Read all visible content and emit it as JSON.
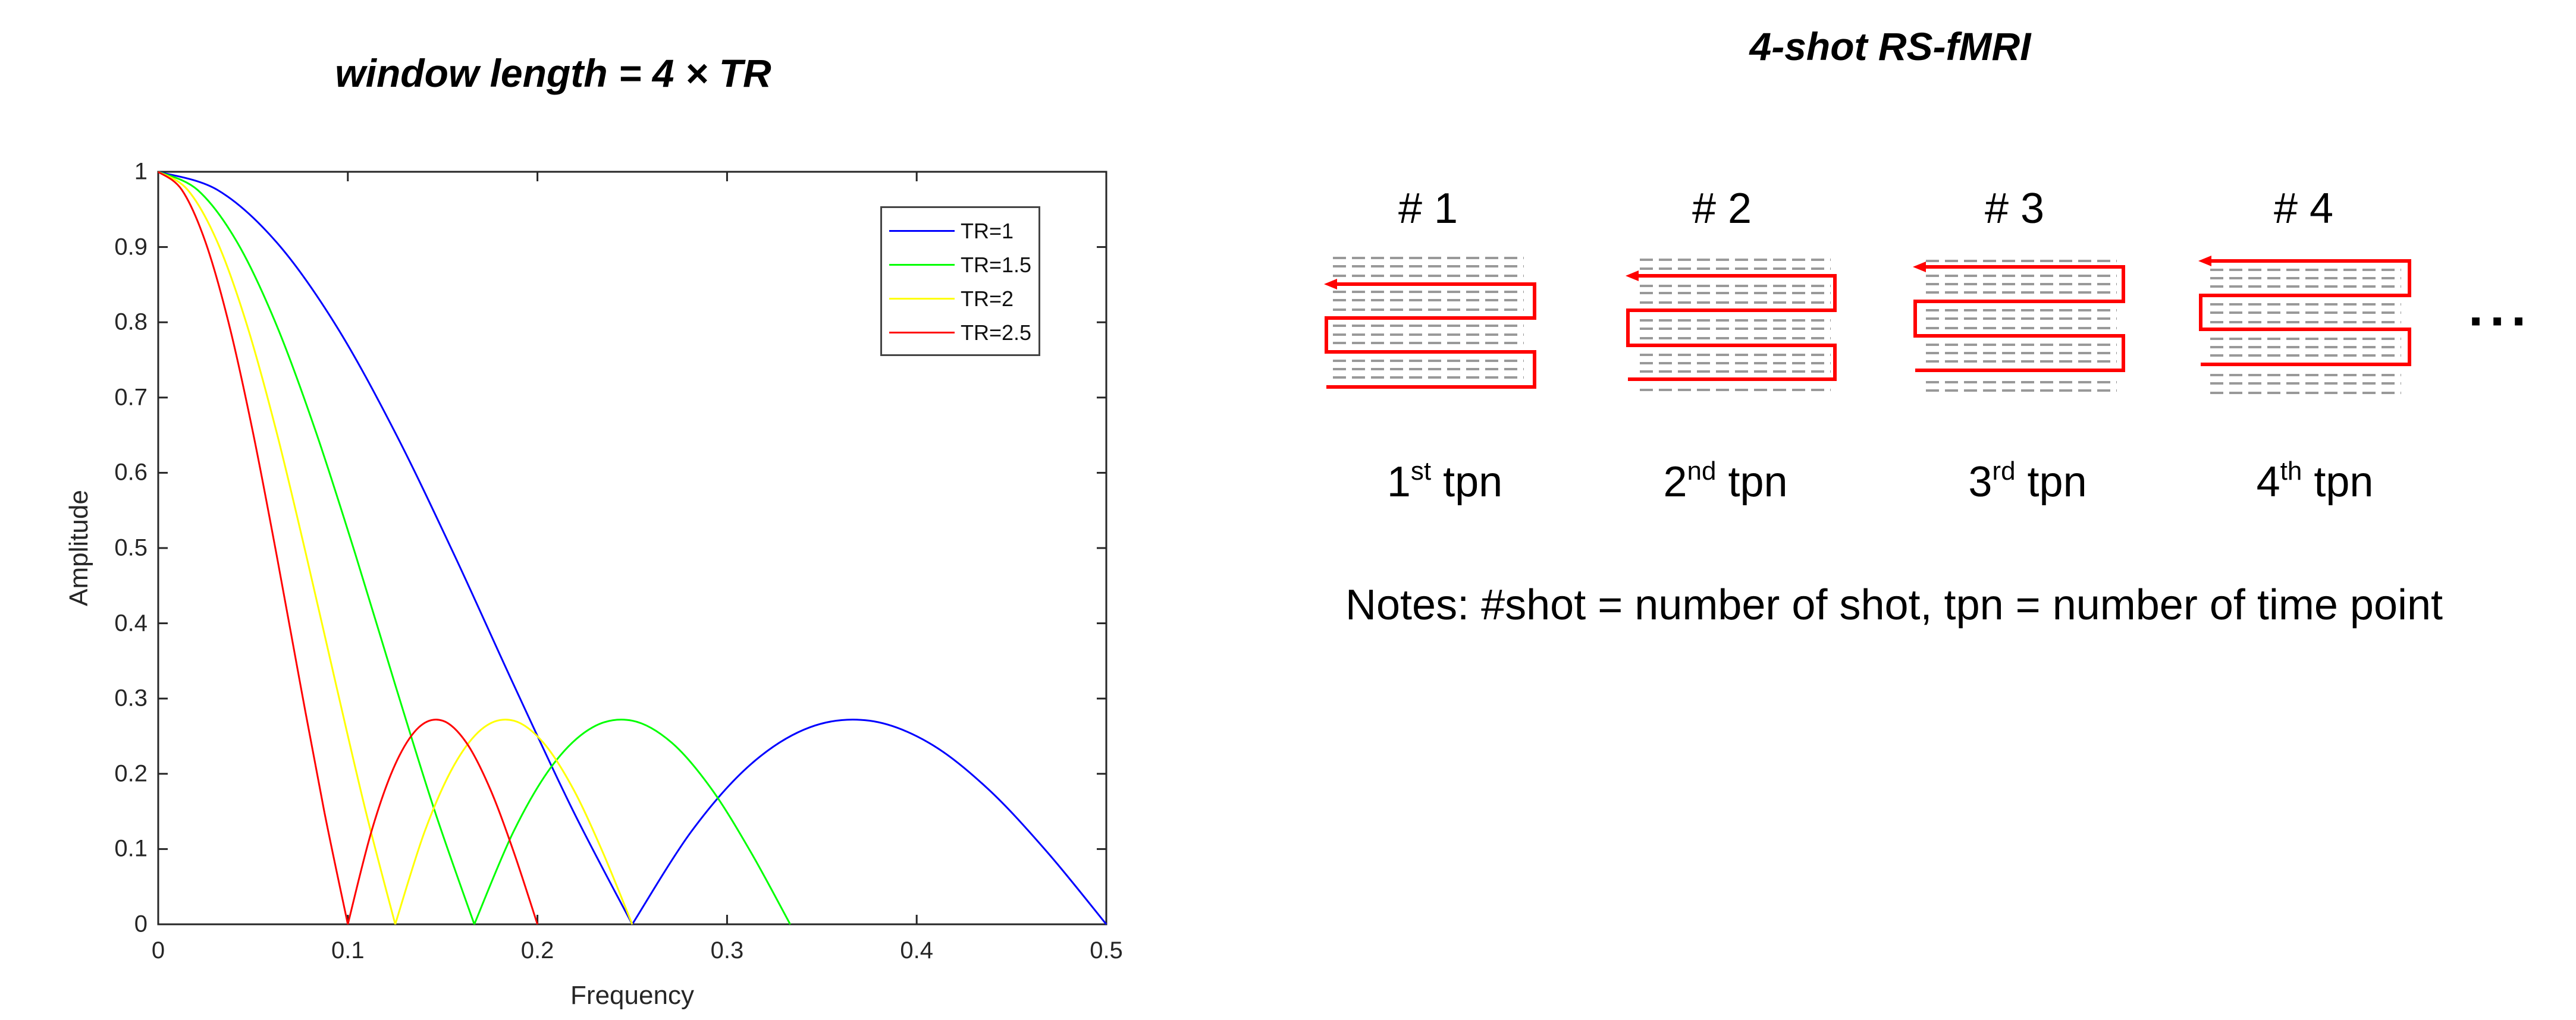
{
  "left_panel": {
    "title": "window length = 4 × TR"
  },
  "chart_data": {
    "type": "line",
    "title": "window length = 4 × TR",
    "xlabel": "Frequency",
    "ylabel": "Amplitude",
    "xlim": [
      0,
      0.5
    ],
    "ylim": [
      0,
      1
    ],
    "xticks": [
      "0",
      "0.1",
      "0.2",
      "0.3",
      "0.4",
      "0.5"
    ],
    "yticks": [
      "0",
      "0.1",
      "0.2",
      "0.3",
      "0.4",
      "0.5",
      "0.6",
      "0.7",
      "0.8",
      "0.9",
      "1"
    ],
    "grid": false,
    "legend_position": "top-right",
    "series": [
      {
        "name": "TR=1",
        "color": "#0000ff",
        "x": [
          0,
          0.0313,
          0.0625,
          0.0938,
          0.125,
          0.1563,
          0.1875,
          0.2188,
          0.25,
          0.2813,
          0.3125,
          0.3438,
          0.375,
          0.4063,
          0.4375,
          0.4688,
          0.5
        ],
        "y": [
          1,
          0.9758,
          0.9061,
          0.7956,
          0.6533,
          0.49,
          0.3182,
          0.1508,
          0,
          0.1238,
          0.2126,
          0.2619,
          0.2706,
          0.2414,
          0.1802,
          0.0961,
          0
        ]
      },
      {
        "name": "TR=1.5",
        "color": "#00ff00",
        "x": [
          0,
          0.0208,
          0.0417,
          0.0625,
          0.0833,
          0.1042,
          0.125,
          0.1458,
          0.1667,
          0.1875,
          0.2083,
          0.2292,
          0.25,
          0.2708,
          0.2917,
          0.3125,
          0.3333
        ],
        "y": [
          1,
          0.9758,
          0.9061,
          0.7956,
          0.6533,
          0.49,
          0.3182,
          0.1508,
          0,
          0.1238,
          0.2126,
          0.2619,
          0.2706,
          0.2414,
          0.1802,
          0.0961,
          0
        ]
      },
      {
        "name": "TR=2",
        "color": "#ffff00",
        "x": [
          0,
          0.0156,
          0.0313,
          0.0469,
          0.0625,
          0.0781,
          0.0938,
          0.1094,
          0.125,
          0.1406,
          0.1563,
          0.1719,
          0.1875,
          0.2031,
          0.2188,
          0.2344,
          0.25
        ],
        "y": [
          1,
          0.9758,
          0.9061,
          0.7956,
          0.6533,
          0.49,
          0.3182,
          0.1508,
          0,
          0.1238,
          0.2126,
          0.2619,
          0.2706,
          0.2414,
          0.1802,
          0.0961,
          0
        ]
      },
      {
        "name": "TR=2.5",
        "color": "#ff0000",
        "x": [
          0,
          0.0125,
          0.025,
          0.0375,
          0.05,
          0.0625,
          0.075,
          0.0875,
          0.1,
          0.1125,
          0.125,
          0.1375,
          0.15,
          0.1625,
          0.175,
          0.1875,
          0.2
        ],
        "y": [
          1,
          0.9758,
          0.9061,
          0.7956,
          0.6533,
          0.49,
          0.3182,
          0.1508,
          0,
          0.1238,
          0.2126,
          0.2619,
          0.2706,
          0.2414,
          0.1802,
          0.0961,
          0
        ]
      }
    ]
  },
  "right_panel": {
    "title": "4-shot RS-fMRI",
    "shots": [
      {
        "label": "# 1",
        "tpn_num": "1",
        "tpn_sup": "st",
        "tpn_word": " tpn"
      },
      {
        "label": "# 2",
        "tpn_num": "2",
        "tpn_sup": "nd",
        "tpn_word": " tpn"
      },
      {
        "label": "# 3",
        "tpn_num": "3",
        "tpn_sup": "rd",
        "tpn_word": " tpn"
      },
      {
        "label": "# 4",
        "tpn_num": "4",
        "tpn_sup": "th",
        "tpn_word": " tpn"
      }
    ],
    "ellipsis": "···",
    "trajectory_color": "#ff0000",
    "line_color": "#999999",
    "notes": "Notes: #shot = number of shot, tpn = number of time point"
  }
}
